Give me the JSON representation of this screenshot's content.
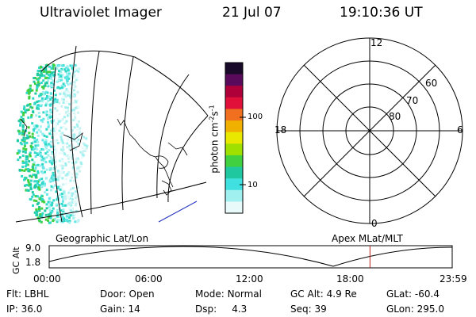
{
  "header": {
    "instrument": "Ultraviolet Imager",
    "date": "21 Jul 07",
    "time": "19:10:36 UT"
  },
  "colorbar": {
    "unit": "photon cm",
    "unit_exp1": "-2",
    "unit_s": "s",
    "unit_exp2": "-1",
    "ticks": [
      "100",
      "10"
    ],
    "colors": [
      "#1a0a2a",
      "#5a0a5a",
      "#b0003a",
      "#e0103a",
      "#f07020",
      "#f0b000",
      "#e8e800",
      "#a0e000",
      "#40d040",
      "#20c8a0",
      "#40e0e0",
      "#a0f0f0",
      "#e8fafa"
    ]
  },
  "polar": {
    "mlt_labels": {
      "top": "12",
      "left": "18",
      "right": "6",
      "bottom": "0"
    },
    "lat_labels": [
      "60",
      "70",
      "80"
    ]
  },
  "labels": {
    "left_panel": "Geographic Lat/Lon",
    "right_panel": "Apex MLat/MLT"
  },
  "timeline": {
    "ylabel": "GC Alt",
    "y_ticks": [
      "9.0",
      "1.8"
    ],
    "x_ticks": [
      "00:00",
      "06:00",
      "12:00",
      "18:00",
      "23:59"
    ],
    "current_time_fraction": 0.796
  },
  "status": {
    "flt_label": "Flt:",
    "flt_value": "LBHL",
    "door_label": "Door:",
    "door_value": "Open",
    "mode_label": "Mode:",
    "mode_value": "Normal",
    "gcalt_label": "GC Alt:",
    "gcalt_value": "4.9 Re",
    "glat_label": "GLat:",
    "glat_value": "-60.4",
    "ip_label": "IP:",
    "ip_value": "36.0",
    "gain_label": "Gain:",
    "gain_value": "14",
    "dsp_label": "Dsp:",
    "dsp_value": "4.3",
    "seq_label": "Seq:",
    "seq_value": "39",
    "glon_label": "GLon:",
    "glon_value": "295.0"
  }
}
